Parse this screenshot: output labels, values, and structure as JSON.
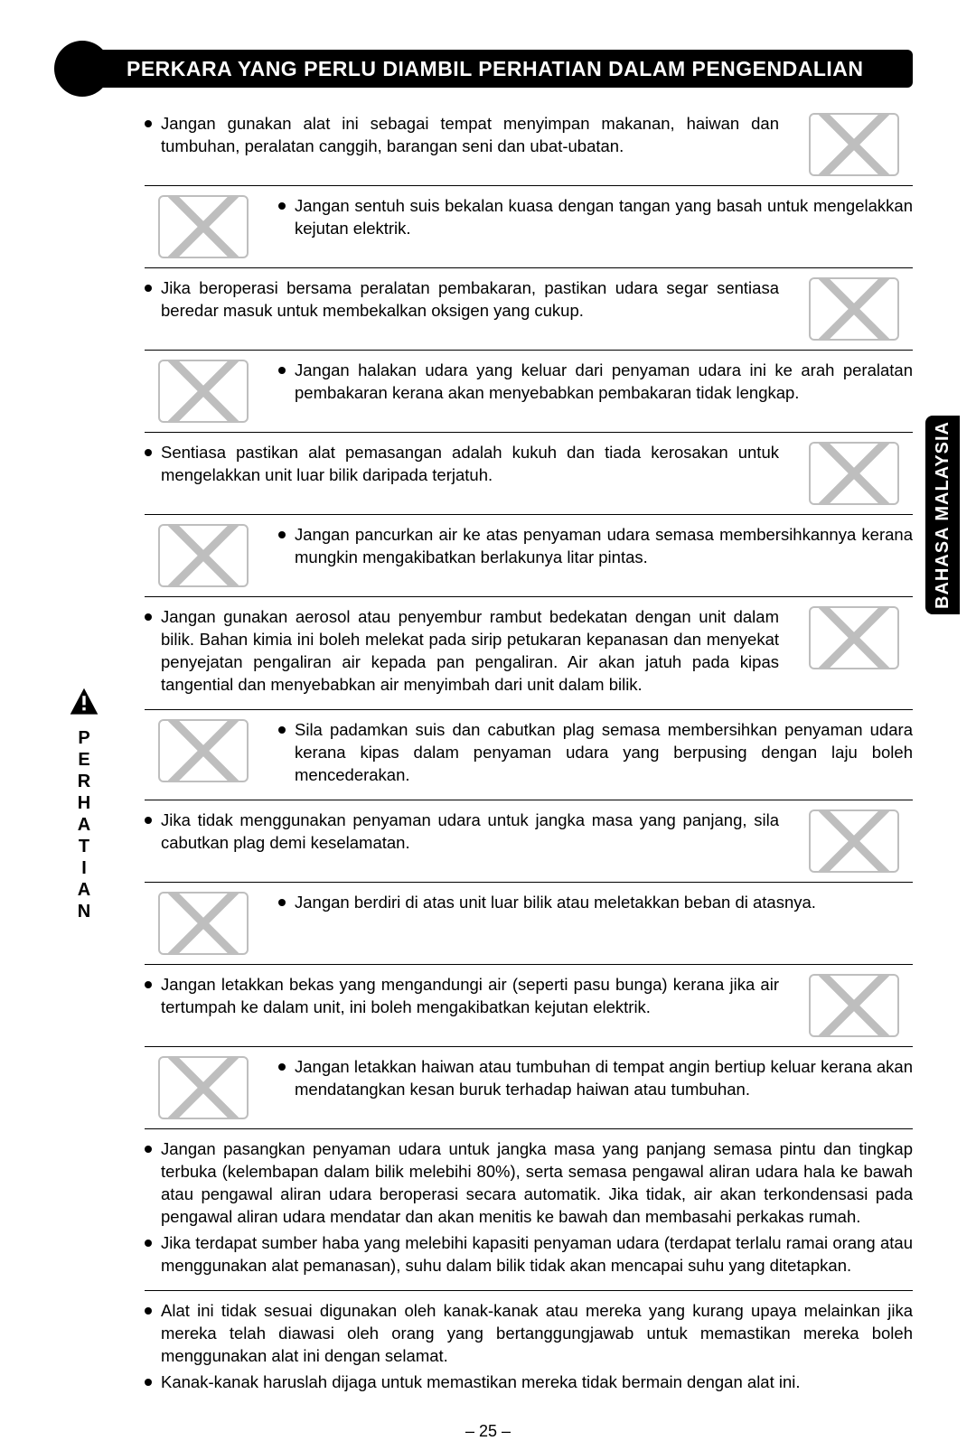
{
  "header": {
    "title": "PERKARA YANG PERLU DIAMBIL PERHATIAN DALAM PENGENDALIAN"
  },
  "lang_tab": "BAHASA MALAYSIA",
  "left_label": [
    "P",
    "E",
    "R",
    "H",
    "A",
    "T",
    "I",
    "A",
    "N"
  ],
  "page_number": "– 25 –",
  "rows": [
    {
      "side": "right",
      "border": true,
      "bullets": [
        "Jangan gunakan alat ini sebagai tempat menyimpan makanan, haiwan dan tumbuhan, peralatan canggih, barangan seni dan ubat-ubatan."
      ]
    },
    {
      "side": "left",
      "border": true,
      "bullets": [
        "Jangan sentuh suis bekalan kuasa dengan tangan yang basah untuk mengelakkan kejutan elektrik."
      ]
    },
    {
      "side": "right",
      "border": true,
      "bullets": [
        "Jika beroperasi bersama peralatan pembakaran, pastikan udara segar sentiasa beredar masuk untuk membekalkan oksigen yang cukup."
      ]
    },
    {
      "side": "left",
      "border": true,
      "bullets": [
        "Jangan halakan udara yang keluar dari penyaman udara ini ke arah peralatan pembakaran kerana akan menyebabkan pembakaran tidak lengkap."
      ]
    },
    {
      "side": "right",
      "border": true,
      "bullets": [
        "Sentiasa pastikan alat pemasangan adalah kukuh dan tiada kerosakan untuk mengelakkan unit luar bilik daripada terjatuh."
      ]
    },
    {
      "side": "left",
      "border": true,
      "bullets": [
        "Jangan pancurkan air ke atas penyaman udara semasa membersihkannya kerana mungkin mengakibatkan berlakunya litar pintas."
      ]
    },
    {
      "side": "right",
      "border": true,
      "bullets": [
        "Jangan gunakan aerosol atau penyembur rambut bedekatan dengan unit dalam bilik. Bahan kimia ini boleh melekat pada sirip petukaran kepanasan dan menyekat penyejatan pengaliran air kepada pan pengaliran. Air akan jatuh pada kipas tangential dan menyebabkan air menyimbah dari unit dalam bilik."
      ]
    },
    {
      "side": "left",
      "border": true,
      "bullets": [
        "Sila padamkan suis dan cabutkan plag semasa membersihkan penyaman udara kerana kipas dalam penyaman udara yang berpusing dengan laju boleh mencederakan."
      ]
    },
    {
      "side": "right",
      "border": true,
      "bullets": [
        "Jika tidak menggunakan penyaman udara untuk jangka masa yang panjang, sila cabutkan plag demi keselamatan."
      ]
    },
    {
      "side": "left",
      "border": true,
      "bullets": [
        "Jangan berdiri di atas unit luar bilik atau meletakkan beban di atasnya."
      ]
    },
    {
      "side": "right",
      "border": true,
      "bullets": [
        "Jangan letakkan bekas yang mengandungi air (seperti pasu bunga) kerana jika air tertumpah ke dalam unit, ini boleh mengakibatkan kejutan elektrik."
      ]
    },
    {
      "side": "left",
      "border": true,
      "bullets": [
        "Jangan letakkan haiwan atau tumbuhan di tempat angin bertiup keluar kerana akan mendatangkan kesan buruk terhadap haiwan atau tumbuhan."
      ]
    },
    {
      "side": "none",
      "border": true,
      "bullets": [
        "Jangan pasangkan penyaman udara untuk jangka masa yang panjang semasa pintu dan tingkap terbuka (kelembapan dalam bilik melebihi 80%), serta semasa pengawal aliran udara hala ke bawah atau pengawal aliran udara beroperasi secara automatik. Jika tidak, air akan terkondensasi pada pengawal aliran udara mendatar dan akan menitis ke bawah dan membasahi perkakas rumah.",
        "Jika terdapat sumber haba yang melebihi kapasiti penyaman udara (terdapat terlalu ramai orang atau menggunakan alat pemanasan), suhu dalam bilik tidak akan mencapai suhu yang ditetapkan."
      ]
    },
    {
      "side": "none",
      "border": false,
      "bullets": [
        "Alat ini tidak sesuai digunakan oleh kanak-kanak atau mereka yang kurang upaya melainkan jika mereka telah diawasi oleh orang yang bertanggungjawab untuk memastikan mereka boleh menggunakan alat ini dengan selamat.",
        "Kanak-kanak haruslah dijaga untuk memastikan mereka tidak bermain dengan alat ini."
      ]
    }
  ],
  "colors": {
    "fg": "#000000",
    "bg": "#ffffff"
  }
}
